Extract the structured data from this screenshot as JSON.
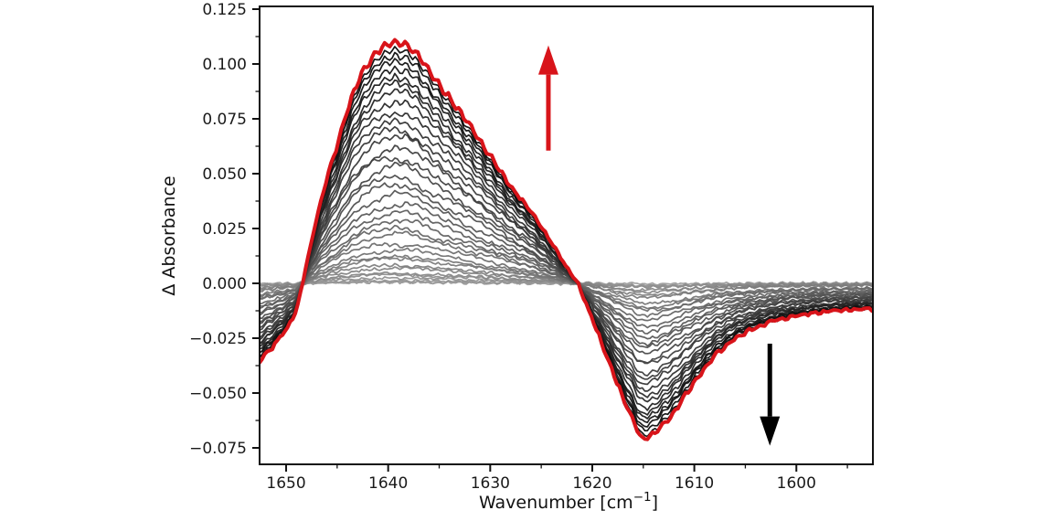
{
  "figure": {
    "background": "#ffffff",
    "description": "Time-resolved IR difference spectra: positive band grows upward (red arrow), negative band grows downward (black arrow); traces shade from light gray (early) through black to a final thick red spectrum."
  },
  "chart_data": {
    "type": "line",
    "title": "",
    "xlabel": "Wavenumber [cm⁻¹]",
    "xlabel_parts": {
      "pre": "Wavenumber [cm",
      "sup": "−1",
      "post": "]"
    },
    "ylabel": "Δ Absorbance",
    "grid": "off",
    "legend": "none",
    "x_axis": {
      "range": [
        1652.6,
        1592.5
      ],
      "reversed": true,
      "major_ticks": [
        1650,
        1640,
        1630,
        1620,
        1610,
        1600
      ],
      "minor_ticks": [
        1645,
        1635,
        1625,
        1615,
        1605,
        1595
      ]
    },
    "y_axis": {
      "range": [
        -0.0825,
        0.12625
      ],
      "major_ticks": [
        0.125,
        0.1,
        0.075,
        0.05,
        0.025,
        0.0,
        -0.025,
        -0.05,
        -0.075
      ],
      "minor_ticks": [
        0.1125,
        0.0875,
        0.0625,
        0.0375,
        0.0125,
        -0.0125,
        -0.0375,
        -0.0625
      ],
      "tick_decimals": 3
    },
    "series_model": {
      "n_traces": 36,
      "progression": "each trace is the final envelope spectrum scaled by amplitude_scales[i], light gray to black, final trace red",
      "amplitude_scales": [
        0.004,
        0.008,
        0.013,
        0.02,
        0.03,
        0.042,
        0.058,
        0.076,
        0.096,
        0.118,
        0.142,
        0.168,
        0.196,
        0.226,
        0.258,
        0.292,
        0.328,
        0.365,
        0.403,
        0.442,
        0.482,
        0.522,
        0.562,
        0.602,
        0.642,
        0.681,
        0.719,
        0.756,
        0.792,
        0.826,
        0.858,
        0.888,
        0.916,
        0.945,
        0.972,
        1.0
      ],
      "gray_start": "#9e9e9e",
      "gray_end": "#0a0a0a",
      "final_trace_color": "#d8141a",
      "positive_band_peak": {
        "wavenumber": 1639.3,
        "delta_absorbance": 0.11
      },
      "negative_band_min": {
        "wavenumber": 1615.2,
        "delta_absorbance": -0.071
      },
      "zero_crossings": [
        1648.4,
        1621.4
      ],
      "envelope": {
        "wavenumber": [
          1652.6,
          1651.5,
          1650.5,
          1650.0,
          1649.0,
          1648.4,
          1647.5,
          1647.0,
          1646.0,
          1645.0,
          1644.0,
          1643.0,
          1642.0,
          1641.0,
          1640.0,
          1639.3,
          1638.0,
          1637.0,
          1636.0,
          1634.0,
          1632.0,
          1630.0,
          1628.0,
          1626.0,
          1624.0,
          1622.5,
          1621.4,
          1620.0,
          1619.0,
          1618.0,
          1617.0,
          1616.0,
          1615.2,
          1614.0,
          1613.0,
          1612.0,
          1611.0,
          1610.0,
          1609.0,
          1608.0,
          1607.0,
          1606.0,
          1605.0,
          1604.0,
          1603.0,
          1602.0,
          1601.0,
          1600.0,
          1598.0,
          1596.0,
          1594.0,
          1592.5
        ],
        "delta_absorbance": [
          -0.0355,
          -0.03,
          -0.0243,
          -0.0215,
          -0.013,
          0.0,
          0.019,
          0.03,
          0.048,
          0.063,
          0.079,
          0.092,
          0.1,
          0.106,
          0.109,
          0.11,
          0.108,
          0.1035,
          0.097,
          0.0845,
          0.072,
          0.058,
          0.044,
          0.033,
          0.0185,
          0.007,
          0.0,
          -0.0165,
          -0.028,
          -0.0405,
          -0.052,
          -0.0625,
          -0.071,
          -0.069,
          -0.064,
          -0.059,
          -0.052,
          -0.045,
          -0.039,
          -0.033,
          -0.029,
          -0.025,
          -0.0225,
          -0.0205,
          -0.0185,
          -0.017,
          -0.016,
          -0.015,
          -0.0135,
          -0.0125,
          -0.012,
          -0.0118
        ]
      }
    },
    "annotations": [
      {
        "type": "arrow",
        "name": "increase-arrow",
        "direction": "up",
        "color": "#d8141a",
        "x": 1624.3,
        "y_from": 0.0605,
        "y_to": 0.1085
      },
      {
        "type": "arrow",
        "name": "decrease-arrow",
        "direction": "down",
        "color": "#000000",
        "x": 1602.6,
        "y_from": -0.0275,
        "y_to": -0.074
      }
    ]
  }
}
